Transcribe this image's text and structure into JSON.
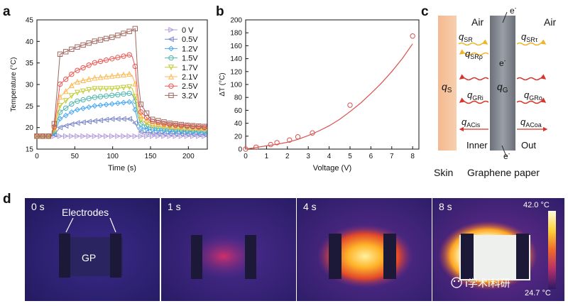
{
  "panel_labels": {
    "a": "a",
    "b": "b",
    "c": "c",
    "d": "d"
  },
  "chart_data": [
    {
      "panel": "a",
      "type": "line",
      "xlabel": "Time (s)",
      "ylabel": "Temperature (°C)",
      "xlim": [
        0,
        225
      ],
      "ylim": [
        15,
        45
      ],
      "xticks": [
        "0",
        "50",
        "100",
        "150",
        "200"
      ],
      "yticks": [
        "15",
        "20",
        "25",
        "30",
        "35",
        "40",
        "45"
      ],
      "legend_position": "top-right",
      "series": [
        {
          "name": "0   V",
          "color": "#b39ddb",
          "marker": "triangle-right",
          "x": [
            0,
            10,
            20,
            24,
            30,
            50,
            75,
            100,
            125,
            135,
            150,
            175,
            200,
            225
          ],
          "y": [
            18,
            18,
            18,
            18,
            18,
            18,
            18,
            18,
            18,
            18,
            18,
            18,
            18,
            18
          ]
        },
        {
          "name": "0.5V",
          "color": "#7986cb",
          "marker": "triangle-left",
          "x": [
            0,
            10,
            20,
            24,
            30,
            50,
            75,
            100,
            125,
            130,
            135,
            150,
            175,
            200,
            225
          ],
          "y": [
            18,
            18,
            18,
            18.5,
            20,
            21,
            21.5,
            22,
            22,
            21,
            19,
            18.8,
            18.6,
            18.5,
            18.4
          ]
        },
        {
          "name": "1.2V",
          "color": "#42a5f5",
          "marker": "diamond",
          "x": [
            0,
            10,
            20,
            24,
            30,
            50,
            75,
            100,
            125,
            130,
            135,
            150,
            175,
            200,
            225
          ],
          "y": [
            18,
            18,
            18,
            19,
            22,
            24,
            25,
            25.5,
            26,
            24,
            20,
            19.5,
            19.2,
            19,
            18.9
          ]
        },
        {
          "name": "1.5V",
          "color": "#4db6ac",
          "marker": "circle",
          "x": [
            0,
            10,
            20,
            24,
            30,
            50,
            75,
            100,
            125,
            130,
            135,
            150,
            175,
            200,
            225
          ],
          "y": [
            18,
            18,
            18,
            19.5,
            23.5,
            26,
            27,
            27.5,
            28,
            26,
            21,
            20,
            19.6,
            19.3,
            19.2
          ]
        },
        {
          "name": "1.7V",
          "color": "#c0ca33",
          "marker": "triangle-down",
          "x": [
            0,
            10,
            20,
            24,
            30,
            50,
            75,
            100,
            125,
            130,
            135,
            150,
            175,
            200,
            225
          ],
          "y": [
            18,
            18,
            18,
            20,
            25,
            28,
            29,
            29,
            29.5,
            27,
            22,
            20.5,
            20,
            19.7,
            19.5
          ]
        },
        {
          "name": "2.1V",
          "color": "#ffb74d",
          "marker": "triangle-up",
          "x": [
            0,
            10,
            20,
            24,
            30,
            50,
            75,
            100,
            125,
            130,
            135,
            150,
            175,
            200,
            225
          ],
          "y": [
            18,
            18,
            18,
            20.5,
            27,
            30.5,
            31.5,
            32,
            32.5,
            30,
            23,
            21,
            20.4,
            20,
            19.8
          ]
        },
        {
          "name": "2.5V",
          "color": "#ef5350",
          "marker": "circle",
          "x": [
            0,
            10,
            20,
            24,
            30,
            50,
            75,
            100,
            125,
            130,
            135,
            150,
            175,
            200,
            225
          ],
          "y": [
            18,
            18,
            18,
            21,
            30,
            33,
            35,
            36,
            37,
            34,
            24,
            21.5,
            20.7,
            20.3,
            20
          ]
        },
        {
          "name": "3.2V",
          "color": "#a1665e",
          "marker": "square",
          "x": [
            0,
            10,
            20,
            24,
            30,
            50,
            75,
            100,
            125,
            130,
            135,
            150,
            175,
            200,
            225
          ],
          "y": [
            18,
            18,
            18,
            22,
            37,
            38.5,
            40,
            41,
            42.5,
            43,
            26,
            22,
            21,
            20.5,
            20.2
          ]
        }
      ]
    },
    {
      "panel": "b",
      "type": "scatter",
      "xlabel": "Voltage (V)",
      "ylabel": "ΔT (°C)",
      "xlim": [
        0,
        8.3
      ],
      "ylim": [
        0,
        200
      ],
      "xticks": [
        "0",
        "1",
        "2",
        "3",
        "4",
        "5",
        "6",
        "7",
        "8"
      ],
      "yticks": [
        "0",
        "20",
        "40",
        "60",
        "80",
        "100",
        "120",
        "140",
        "160",
        "180",
        "200"
      ],
      "series": [
        {
          "marker": "circle-open",
          "color": "#d9534f",
          "x": [
            0,
            0.5,
            1.2,
            1.5,
            2.1,
            2.5,
            3.2,
            5,
            8
          ],
          "y": [
            0,
            3,
            7,
            10,
            14,
            19,
            25,
            68,
            175
          ]
        }
      ],
      "fit": {
        "color": "#d9534f",
        "x": [
          0,
          0.5,
          1,
          1.5,
          2,
          2.5,
          3,
          3.5,
          4,
          4.5,
          5,
          5.5,
          6,
          6.5,
          7,
          7.5,
          8
        ],
        "y": [
          0,
          2.5,
          5,
          7.5,
          10.5,
          15,
          21,
          28,
          36,
          46,
          58,
          71,
          86,
          102,
          120,
          140,
          163
        ]
      }
    }
  ],
  "schematic": {
    "air_left": "Air",
    "air_right": "Air",
    "q_sr": "q",
    "q_sr_sub": "SR",
    "q_srt": "q",
    "q_srt_sub": "SRτ",
    "q_srrho": "q",
    "q_srrho_sub": "SRρ",
    "q_s": "q",
    "q_s_sub": "S",
    "q_g": "q",
    "q_g_sub": "G",
    "q_gri": "q",
    "q_gri_sub": "GRi",
    "q_gro": "q",
    "q_gro_sub": "GRo",
    "q_acis": "q",
    "q_acis_sub": "ACis",
    "q_acoa": "q",
    "q_acoa_sub": "ACoa",
    "electron": "e",
    "electron_sup": "-",
    "inner": "Inner",
    "out": "Out",
    "skin": "Skin",
    "graphene_paper": "Graphene paper"
  },
  "thermal_images": {
    "frames": [
      {
        "time": "0 s"
      },
      {
        "time": "1 s"
      },
      {
        "time": "4 s"
      },
      {
        "time": "8 s"
      }
    ],
    "electrodes_label": "Electrodes",
    "gp_label": "GP",
    "colorbar_max": "42.0 °C",
    "colorbar_min": "24.7 °C",
    "watermark": "i学术i科研"
  }
}
